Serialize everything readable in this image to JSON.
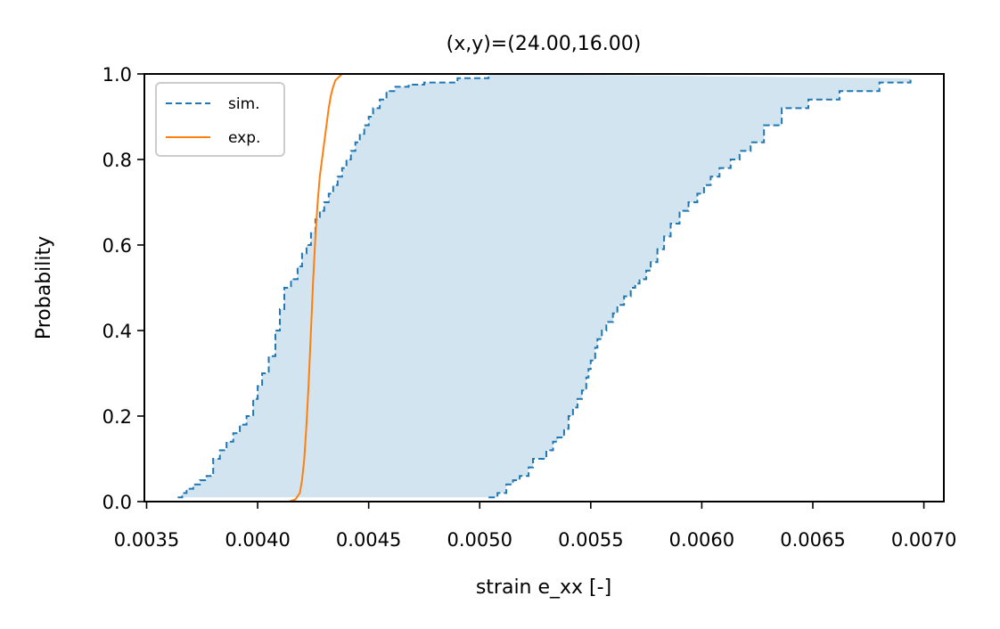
{
  "chart_data": {
    "type": "line",
    "title": "(x,y)=(24.00,16.00)",
    "xlabel": "strain e_xx [-]",
    "ylabel": "Probability",
    "xlim": [
      0.00349,
      0.00709
    ],
    "ylim": [
      0.0,
      1.0
    ],
    "x_ticks": [
      0.0035,
      0.004,
      0.0045,
      0.005,
      0.0055,
      0.006,
      0.0065,
      0.007
    ],
    "x_tick_labels": [
      "0.0035",
      "0.0040",
      "0.0045",
      "0.0050",
      "0.0055",
      "0.0060",
      "0.0065",
      "0.0070"
    ],
    "y_ticks": [
      0.0,
      0.2,
      0.4,
      0.6,
      0.8,
      1.0
    ],
    "y_tick_labels": [
      "0.0",
      "0.2",
      "0.4",
      "0.6",
      "0.8",
      "1.0"
    ],
    "grid": false,
    "legend_position": "top-left",
    "series": [
      {
        "name": "sim.",
        "style": "dashed",
        "color": "#1f77b4",
        "band": {
          "color": "#1f77b4",
          "opacity": 0.2,
          "lower_x": [
            0.00504,
            0.00508,
            0.00512,
            0.00515,
            0.00518,
            0.00522,
            0.00524,
            0.00527,
            0.0053,
            0.00533,
            0.00535,
            0.00538,
            0.0054,
            0.00542,
            0.00544,
            0.00546,
            0.00548,
            0.00549,
            0.0055,
            0.00552,
            0.00553,
            0.00555,
            0.00557,
            0.0056,
            0.00562,
            0.00565,
            0.00568,
            0.0057,
            0.00572,
            0.00575,
            0.00577,
            0.0058,
            0.00583,
            0.00586,
            0.0059,
            0.00594,
            0.00598,
            0.00601,
            0.00604,
            0.00608,
            0.00613,
            0.00617,
            0.00622,
            0.00628,
            0.00636,
            0.00648,
            0.00662,
            0.0068,
            0.00694
          ],
          "lower_y": [
            0.01,
            0.02,
            0.04,
            0.05,
            0.06,
            0.08,
            0.1,
            0.1,
            0.12,
            0.14,
            0.15,
            0.17,
            0.2,
            0.22,
            0.24,
            0.26,
            0.29,
            0.31,
            0.33,
            0.36,
            0.38,
            0.4,
            0.42,
            0.44,
            0.46,
            0.48,
            0.5,
            0.51,
            0.52,
            0.54,
            0.56,
            0.59,
            0.62,
            0.65,
            0.68,
            0.7,
            0.72,
            0.74,
            0.76,
            0.78,
            0.8,
            0.82,
            0.84,
            0.88,
            0.92,
            0.94,
            0.96,
            0.98,
            0.99
          ],
          "upper_x": [
            0.00364,
            0.00366,
            0.00368,
            0.00371,
            0.00374,
            0.00377,
            0.0038,
            0.00383,
            0.00386,
            0.00389,
            0.00392,
            0.00395,
            0.00398,
            0.004,
            0.00402,
            0.00405,
            0.00408,
            0.0041,
            0.00412,
            0.00415,
            0.00418,
            0.0042,
            0.00422,
            0.00424,
            0.00426,
            0.00428,
            0.0043,
            0.00432,
            0.00434,
            0.00436,
            0.00438,
            0.0044,
            0.00442,
            0.00444,
            0.00446,
            0.00448,
            0.0045,
            0.00452,
            0.00455,
            0.00458,
            0.00462,
            0.00468,
            0.00475,
            0.0049,
            0.00504
          ],
          "upper_y": [
            0.01,
            0.02,
            0.03,
            0.04,
            0.05,
            0.06,
            0.1,
            0.12,
            0.14,
            0.16,
            0.18,
            0.2,
            0.24,
            0.27,
            0.3,
            0.34,
            0.4,
            0.45,
            0.5,
            0.52,
            0.55,
            0.58,
            0.6,
            0.63,
            0.66,
            0.68,
            0.7,
            0.72,
            0.74,
            0.76,
            0.78,
            0.8,
            0.82,
            0.84,
            0.86,
            0.88,
            0.9,
            0.92,
            0.94,
            0.96,
            0.97,
            0.975,
            0.98,
            0.99,
            1.0
          ]
        }
      },
      {
        "name": "exp.",
        "style": "solid",
        "color": "#ff7f0e",
        "x": [
          0.00414,
          0.00417,
          0.00419,
          0.0042,
          0.00421,
          0.00422,
          0.00423,
          0.00424,
          0.00425,
          0.00426,
          0.00427,
          0.00428,
          0.00429,
          0.0043,
          0.00431,
          0.00432,
          0.00433,
          0.00434,
          0.00435,
          0.00437,
          0.00438
        ],
        "y": [
          0.0,
          0.005,
          0.02,
          0.05,
          0.1,
          0.18,
          0.28,
          0.4,
          0.52,
          0.62,
          0.7,
          0.76,
          0.8,
          0.84,
          0.88,
          0.92,
          0.95,
          0.97,
          0.985,
          0.995,
          1.0
        ]
      }
    ]
  }
}
